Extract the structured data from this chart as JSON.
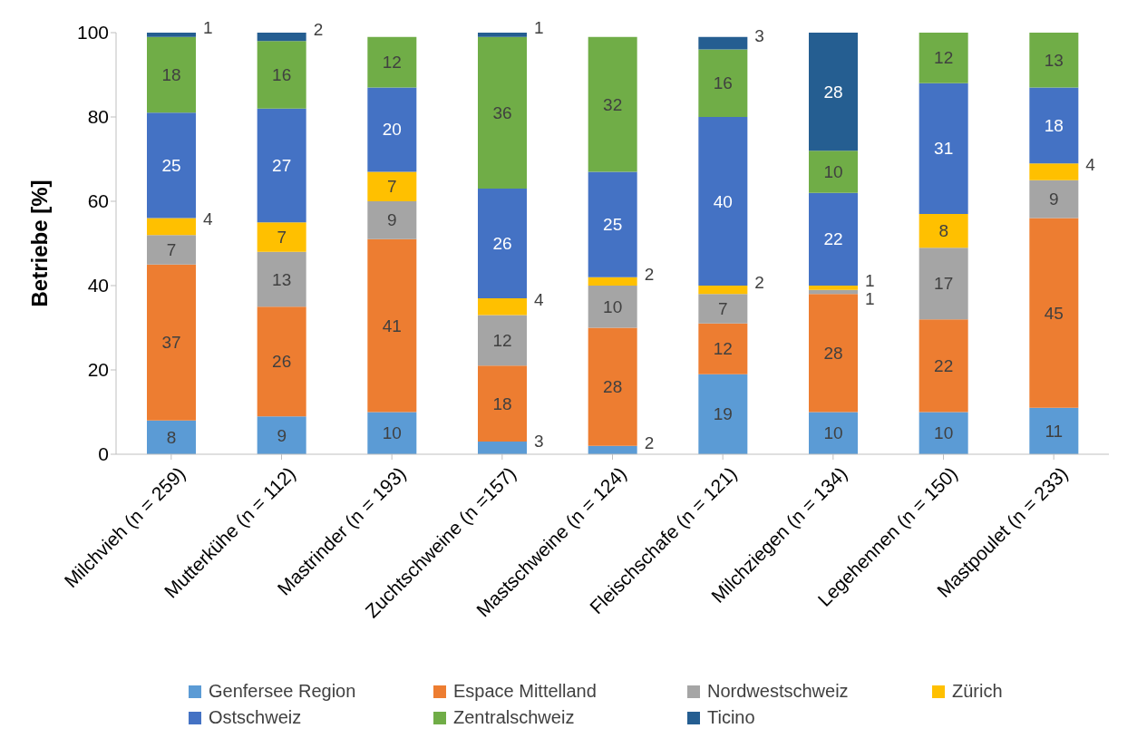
{
  "chart_data": {
    "type": "bar",
    "stacked": true,
    "ylabel": "Betriebe [%]",
    "categories": [
      "Milchvieh (n = 259)",
      "Mutterkühe (n = 112)",
      "Mastrinder (n = 193)",
      "Zuchtschweine (n =157)",
      "Mastschweine (n = 124)",
      "Fleischschafe (n = 121)",
      "Milchziegen (n = 134)",
      "Legehennen (n = 150)",
      "Mastpoulet (n = 233)"
    ],
    "series": [
      {
        "name": "Genfersee Region",
        "color": "#5b9bd5",
        "values": [
          8,
          9,
          10,
          3,
          2,
          19,
          10,
          10,
          11
        ]
      },
      {
        "name": "Espace Mittelland",
        "color": "#ed7d31",
        "values": [
          37,
          26,
          41,
          18,
          28,
          12,
          28,
          22,
          45
        ]
      },
      {
        "name": "Nordwestschweiz",
        "color": "#a5a5a5",
        "values": [
          7,
          13,
          9,
          12,
          10,
          7,
          1,
          17,
          9
        ]
      },
      {
        "name": "Zürich",
        "color": "#ffc000",
        "values": [
          4,
          7,
          7,
          4,
          2,
          2,
          1,
          8,
          4
        ]
      },
      {
        "name": "Ostschweiz",
        "color": "#4472c4",
        "values": [
          25,
          27,
          20,
          26,
          25,
          40,
          22,
          31,
          18
        ]
      },
      {
        "name": "Zentralschweiz",
        "color": "#70ad47",
        "values": [
          18,
          16,
          12,
          36,
          32,
          16,
          10,
          12,
          13
        ]
      },
      {
        "name": "Ticino",
        "color": "#255e91",
        "values": [
          1,
          2,
          null,
          1,
          null,
          3,
          28,
          null,
          null
        ]
      }
    ],
    "ylim": [
      0,
      100
    ],
    "yticks": [
      0,
      20,
      40,
      60,
      80,
      100
    ],
    "grid": false,
    "legend": "bottom",
    "data_labels": true
  }
}
